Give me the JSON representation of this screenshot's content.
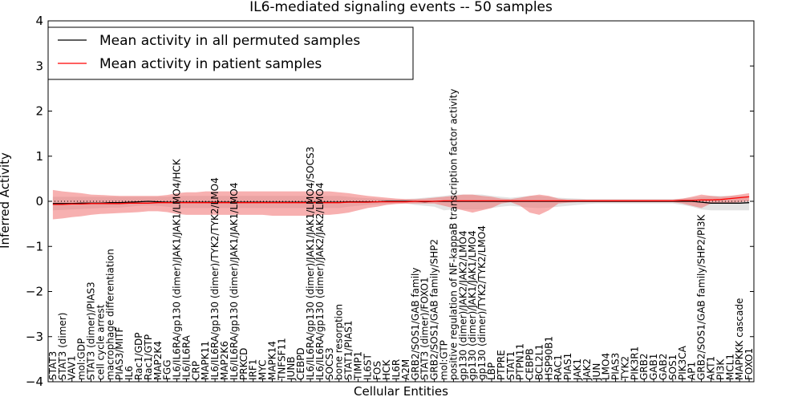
{
  "chart_data": {
    "type": "line",
    "title": "IL6-mediated signaling events -- 50 samples",
    "xlabel": "Cellular Entities",
    "ylabel": "Inferred Activity",
    "ylim": [
      -4,
      4
    ],
    "yticks": [
      -4,
      -3,
      -2,
      -1,
      0,
      1,
      2,
      3,
      4
    ],
    "legend_position": "top-left",
    "grid": false,
    "categories": [
      "STAT3",
      "STAT3 (dimer)",
      "VAV1",
      "mol:GDP",
      "STAT3 (dimer)/PIAS3",
      "cell cycle arrest",
      "macrophage differentiation",
      "PIAS3/MITF",
      "IL6",
      "Rac1/GDP",
      "Rac1/GTP",
      "MAP2K4",
      "FGG",
      "IL6/IL6RA/gp130 (dimer)/JAK1/JAK1/LMO4/HCK",
      "IL6/IL6RA",
      "CRP",
      "MAPK11",
      "IL6/IL6RA/gp130 (dimer)/TYK2/TYK2/LMO4",
      "MAP2K6",
      "IL6/IL6RA/gp130 (dimer)/JAK1/JAK1/LMO4",
      "PRKCD",
      "IRF1",
      "MYC",
      "MAPK14",
      "TNFSF11",
      "JUNB",
      "CEBPD",
      "IL6/IL6RA/gp130 (dimer)/JAK1/JAK1/LMO4/SOCS3",
      "IL6/IL6RA/gp130 (dimer)/JAK2/JAK2/LMO4",
      "SOCS3",
      "bone resorption",
      "STAT1/PIAS1",
      "TIMP1",
      "IL6ST",
      "FOS",
      "HCK",
      "IL6R",
      "A2M",
      "GRB2/SOS1/GAB family",
      "STAT3 (dimer)/FOXO1",
      "GRB2/SOS1/GAB family/SHP2",
      "mol:GTP",
      "positive regulation of NF-kappaB transcription factor activity",
      "gp130 (dimer)/JAK2/JAK2/LMO4",
      "gp130 (dimer)/JAK1/JAK1/LMO4",
      "gp130 (dimer)/TYK2/TYK2/LMO4",
      "LBP",
      "PTPRE",
      "STAT1",
      "PTPN11",
      "CEBPB",
      "BCL2L1",
      "HSP90B1",
      "RAC1",
      "PIAS1",
      "JAK1",
      "JAK2",
      "JUN",
      "LMO4",
      "PIAS3",
      "TYK2",
      "PIK3R1",
      "GRB2",
      "GAB1",
      "GAB2",
      "SOS1",
      "PIK3CA",
      "AP1",
      "GRB2/SOS1/GAB family/SHP2/PI3K",
      "AKT1",
      "PI3K",
      "MCL1",
      "MAPKKK cascade",
      "FOXO1"
    ],
    "series": [
      {
        "name": "Mean activity in all permuted samples",
        "color": "#000000",
        "values": [
          -0.05,
          -0.05,
          -0.05,
          -0.04,
          -0.04,
          -0.04,
          -0.03,
          -0.03,
          -0.02,
          -0.01,
          0.0,
          -0.01,
          -0.02,
          -0.02,
          -0.02,
          -0.02,
          -0.02,
          -0.02,
          -0.02,
          -0.02,
          -0.02,
          -0.02,
          -0.02,
          -0.02,
          -0.02,
          -0.02,
          -0.02,
          -0.02,
          -0.02,
          -0.02,
          -0.02,
          -0.01,
          -0.01,
          -0.01,
          -0.01,
          0.0,
          0.0,
          0.0,
          0.0,
          -0.01,
          0.0,
          0.0,
          0.0,
          0.0,
          0.0,
          0.0,
          0.0,
          0.0,
          0.0,
          0.0,
          0.0,
          0.0,
          0.0,
          0.0,
          0.0,
          0.0,
          0.0,
          0.0,
          0.0,
          0.0,
          0.0,
          0.0,
          0.0,
          0.0,
          0.0,
          0.0,
          0.0,
          0.0,
          -0.02,
          -0.04,
          -0.04,
          -0.04,
          -0.04,
          -0.03
        ],
        "band_low": [
          -0.2,
          -0.19,
          -0.18,
          -0.17,
          -0.16,
          -0.15,
          -0.14,
          -0.14,
          -0.12,
          -0.1,
          -0.09,
          -0.1,
          -0.12,
          -0.15,
          -0.15,
          -0.15,
          -0.15,
          -0.15,
          -0.15,
          -0.15,
          -0.15,
          -0.15,
          -0.15,
          -0.15,
          -0.15,
          -0.15,
          -0.15,
          -0.15,
          -0.15,
          -0.15,
          -0.15,
          -0.12,
          -0.1,
          -0.08,
          -0.07,
          -0.06,
          -0.05,
          -0.05,
          -0.08,
          -0.1,
          -0.12,
          -0.2,
          -0.18,
          -0.18,
          -0.18,
          -0.18,
          -0.15,
          -0.12,
          -0.1,
          -0.12,
          -0.14,
          -0.15,
          -0.14,
          -0.12,
          -0.1,
          -0.08,
          -0.06,
          -0.05,
          -0.05,
          -0.05,
          -0.05,
          -0.05,
          -0.05,
          -0.05,
          -0.05,
          -0.05,
          -0.08,
          -0.12,
          -0.18,
          -0.2,
          -0.2,
          -0.2,
          -0.2,
          -0.2
        ],
        "band_high": [
          0.1,
          0.1,
          0.1,
          0.1,
          0.1,
          0.1,
          0.1,
          0.1,
          0.1,
          0.1,
          0.1,
          0.1,
          0.1,
          0.12,
          0.12,
          0.12,
          0.12,
          0.12,
          0.12,
          0.12,
          0.12,
          0.12,
          0.12,
          0.12,
          0.12,
          0.12,
          0.12,
          0.12,
          0.12,
          0.12,
          0.12,
          0.1,
          0.08,
          0.07,
          0.06,
          0.05,
          0.05,
          0.05,
          0.06,
          0.08,
          0.1,
          0.12,
          0.15,
          0.15,
          0.15,
          0.15,
          0.12,
          0.1,
          0.08,
          0.1,
          0.12,
          0.12,
          0.1,
          0.08,
          0.07,
          0.06,
          0.05,
          0.05,
          0.05,
          0.05,
          0.05,
          0.05,
          0.05,
          0.05,
          0.05,
          0.05,
          0.06,
          0.08,
          0.1,
          0.12,
          0.12,
          0.12,
          0.12,
          0.12
        ]
      },
      {
        "name": "Mean activity in patient samples",
        "color": "#ff0000",
        "values": [
          -0.07,
          -0.07,
          -0.06,
          -0.06,
          -0.05,
          -0.05,
          -0.05,
          -0.05,
          -0.04,
          -0.04,
          -0.04,
          -0.03,
          -0.03,
          -0.03,
          -0.03,
          -0.03,
          -0.03,
          -0.03,
          -0.03,
          -0.03,
          -0.03,
          -0.03,
          -0.03,
          -0.03,
          -0.03,
          -0.03,
          -0.03,
          -0.03,
          -0.03,
          -0.03,
          -0.03,
          -0.02,
          -0.02,
          -0.02,
          -0.01,
          -0.01,
          -0.01,
          -0.01,
          0.0,
          0.0,
          0.0,
          0.01,
          0.01,
          0.01,
          0.01,
          0.01,
          0.01,
          0.01,
          0.01,
          0.01,
          0.01,
          0.01,
          0.01,
          0.01,
          0.01,
          0.01,
          0.01,
          0.01,
          0.01,
          0.01,
          0.01,
          0.01,
          0.01,
          0.01,
          0.01,
          0.01,
          0.02,
          0.02,
          0.03,
          0.03,
          0.04,
          0.06,
          0.08,
          0.1
        ],
        "band_low": [
          -0.4,
          -0.38,
          -0.35,
          -0.33,
          -0.3,
          -0.28,
          -0.27,
          -0.26,
          -0.25,
          -0.24,
          -0.22,
          -0.22,
          -0.24,
          -0.28,
          -0.3,
          -0.3,
          -0.3,
          -0.3,
          -0.3,
          -0.3,
          -0.3,
          -0.3,
          -0.3,
          -0.32,
          -0.32,
          -0.32,
          -0.32,
          -0.32,
          -0.3,
          -0.3,
          -0.28,
          -0.25,
          -0.2,
          -0.15,
          -0.12,
          -0.08,
          -0.06,
          -0.05,
          -0.05,
          -0.05,
          -0.05,
          -0.1,
          -0.15,
          -0.2,
          -0.25,
          -0.2,
          -0.15,
          -0.05,
          -0.02,
          -0.1,
          -0.25,
          -0.3,
          -0.2,
          -0.05,
          -0.03,
          -0.02,
          -0.02,
          -0.02,
          -0.02,
          -0.02,
          -0.02,
          -0.02,
          -0.02,
          -0.02,
          -0.02,
          -0.02,
          -0.05,
          -0.1,
          -0.15,
          -0.05,
          -0.03,
          -0.03,
          -0.02,
          0.0
        ],
        "band_high": [
          0.25,
          0.22,
          0.2,
          0.18,
          0.15,
          0.14,
          0.13,
          0.12,
          0.12,
          0.12,
          0.12,
          0.12,
          0.14,
          0.18,
          0.2,
          0.2,
          0.22,
          0.22,
          0.22,
          0.22,
          0.22,
          0.22,
          0.22,
          0.22,
          0.22,
          0.22,
          0.22,
          0.22,
          0.22,
          0.22,
          0.2,
          0.18,
          0.15,
          0.12,
          0.1,
          0.08,
          0.06,
          0.05,
          0.05,
          0.06,
          0.08,
          0.1,
          0.12,
          0.15,
          0.15,
          0.12,
          0.1,
          0.06,
          0.05,
          0.08,
          0.12,
          0.15,
          0.12,
          0.06,
          0.04,
          0.04,
          0.04,
          0.04,
          0.04,
          0.04,
          0.04,
          0.04,
          0.04,
          0.04,
          0.04,
          0.04,
          0.06,
          0.1,
          0.15,
          0.12,
          0.1,
          0.12,
          0.15,
          0.18
        ]
      }
    ]
  }
}
